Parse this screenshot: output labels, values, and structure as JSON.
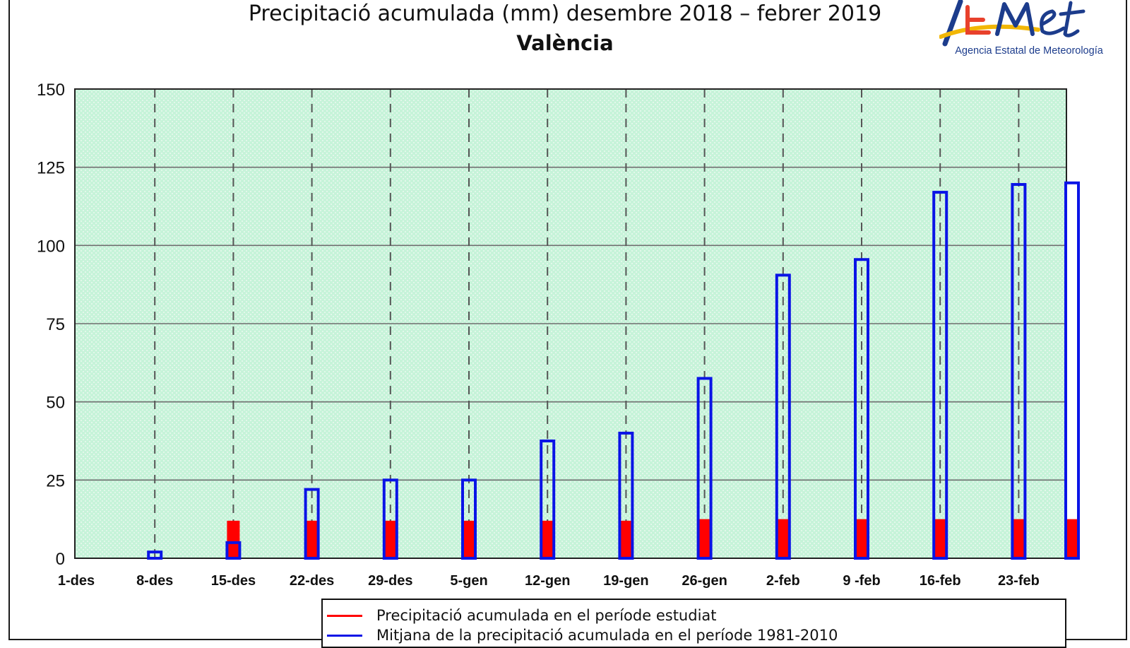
{
  "chart_data": {
    "type": "bar",
    "title": "Precipitació acumulada (mm) desembre 2018 – febrer 2019",
    "subtitle": "València",
    "xlabel": "",
    "ylabel": "",
    "ylim": [
      0,
      150
    ],
    "yticks": [
      0,
      25,
      50,
      75,
      100,
      125,
      150
    ],
    "categories": [
      "1-des",
      "8-des",
      "15-des",
      "22-des",
      "29-des",
      "5-gen",
      "12-gen",
      "19-gen",
      "26-gen",
      "2-feb",
      "9 -feb",
      "16-feb",
      "23-feb",
      ""
    ],
    "grid": true,
    "background_color": "#c6f3d9",
    "series": [
      {
        "name": "Mitjana de la precipitació acumulada en el període 1981-2010",
        "style": "outline",
        "color": "#0a14e6",
        "values": [
          0,
          2,
          5,
          22,
          25,
          25,
          37.5,
          40,
          57.5,
          90.5,
          95.5,
          117,
          119.5,
          120
        ]
      },
      {
        "name": "Precipitació acumulada en el període estudiat",
        "style": "filled",
        "color": "#ff0000",
        "values": [
          0,
          0,
          12,
          12,
          12,
          12,
          12,
          12,
          12.5,
          12.5,
          12.5,
          12.5,
          12.5,
          12.5
        ]
      }
    ],
    "legend": {
      "position": "bottom",
      "entries": [
        {
          "label": "Precipitació acumulada en el període estudiat",
          "color": "#ff0000"
        },
        {
          "label": "Mitjana de la precipitació acumulada en el període 1981-2010",
          "color": "#0a14e6"
        }
      ]
    }
  },
  "logo": {
    "letters": "AEMet",
    "text": "Agencia Estatal de Meteorología",
    "colors": [
      "#f2b705",
      "#e8412c",
      "#1c3c8c"
    ]
  }
}
